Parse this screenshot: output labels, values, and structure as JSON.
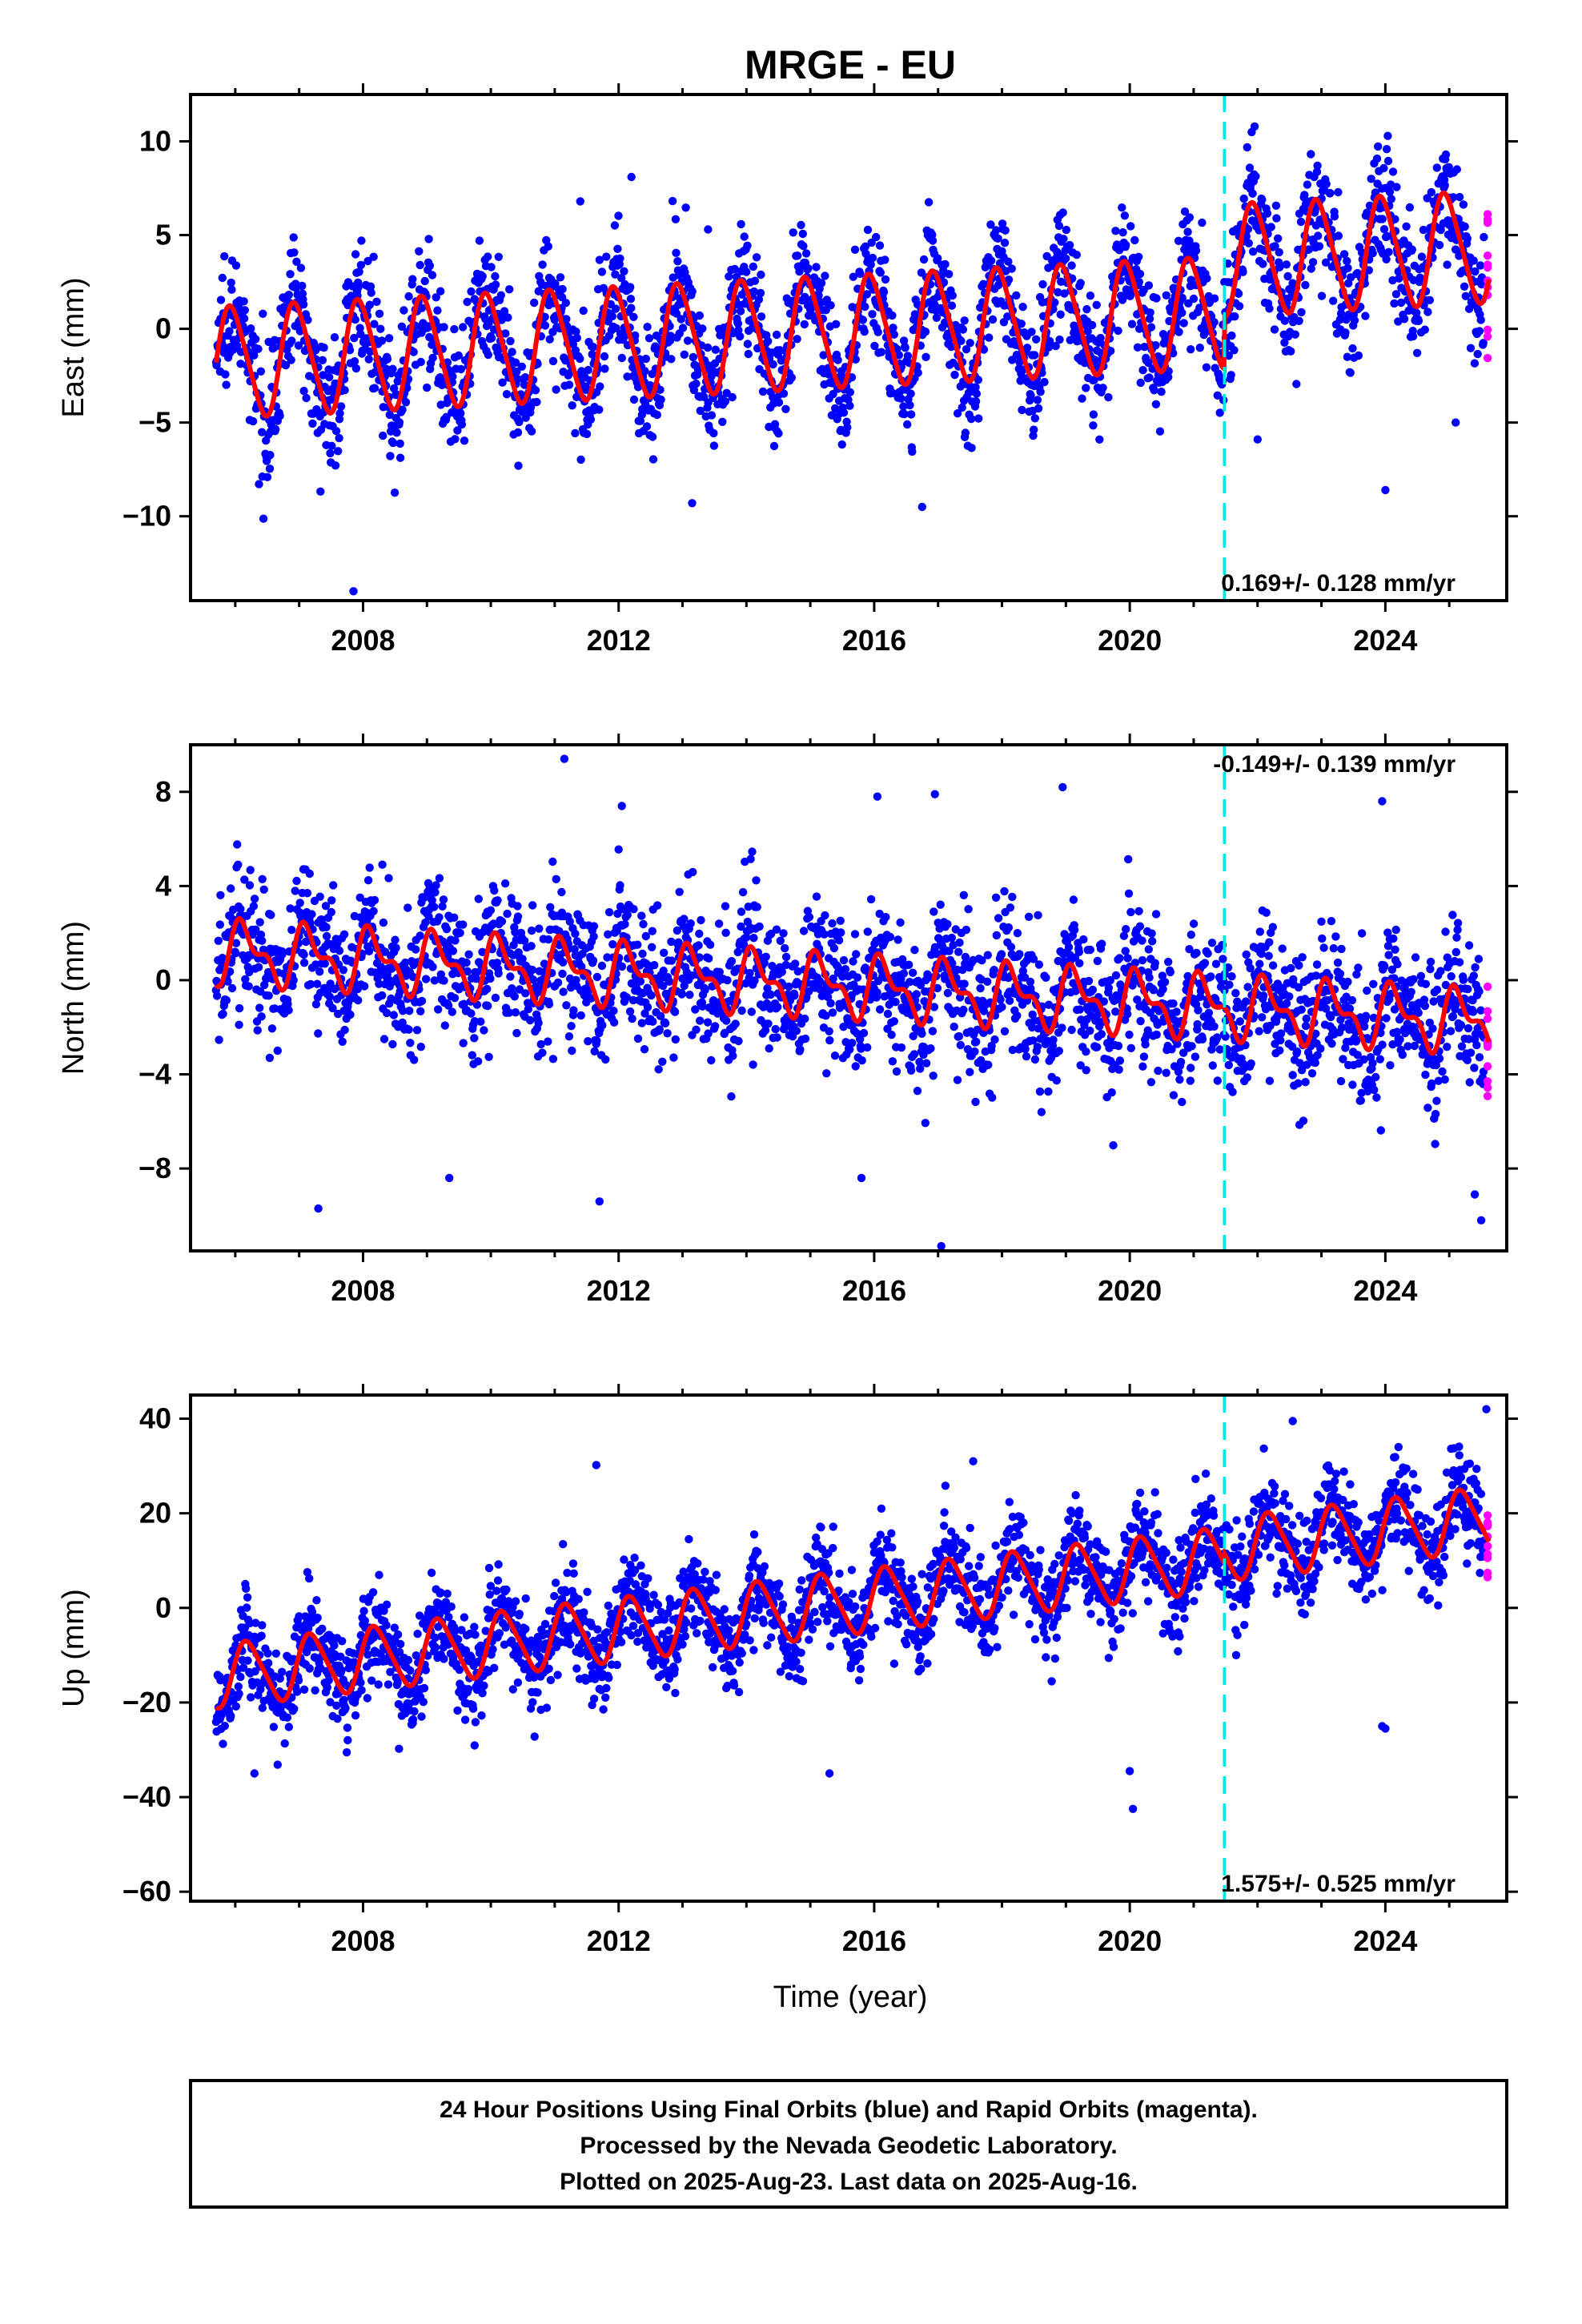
{
  "title": "MRGE - EU",
  "colors": {
    "final": "#0000ff",
    "rapid": "#ff00ff",
    "model": "#ff0000",
    "equipment_change": "#00e5e5"
  },
  "chart_data": [
    {
      "type": "scatter",
      "id": "east",
      "ylabel": "East (mm)",
      "xlim": [
        2005.3,
        2025.9
      ],
      "ylim": [
        -14.5,
        12.5
      ],
      "yticks": [
        10,
        5,
        0,
        -5,
        -10
      ],
      "ytick_labels": [
        "10",
        "5",
        "0",
        "−5",
        "−10"
      ],
      "xticks": [
        2008,
        2012,
        2016,
        2020,
        2024
      ],
      "xtick_labels": [
        "2008",
        "2012",
        "2016",
        "2020",
        "2024"
      ],
      "x_start": 2005.7,
      "x_end": 2025.62,
      "rapid_start": 2025.55,
      "equipment_change_year": 2021.48,
      "rate_text": "0.169+/- 0.128 mm/yr",
      "rate_position": "bottom-right",
      "model": {
        "trend_start": -1.8,
        "rate": 0.169,
        "step_year": 2021.48,
        "step": 2.8,
        "annual_amplitude": 2.9,
        "annual_phase": 2005.7,
        "semiannual_amplitude": 0.4
      },
      "scatter_sd": 1.6,
      "point_count": 2600,
      "outliers": [
        [
          2007.85,
          -14.0
        ],
        [
          2011.4,
          6.8
        ],
        [
          2012.2,
          8.1
        ],
        [
          2013.15,
          -9.3
        ],
        [
          2016.75,
          -9.5
        ],
        [
          2022.0,
          -5.9
        ],
        [
          2024.0,
          -8.6
        ],
        [
          2025.1,
          -5.0
        ],
        [
          2013.4,
          5.3
        ]
      ]
    },
    {
      "type": "scatter",
      "id": "north",
      "ylabel": "North (mm)",
      "xlim": [
        2005.3,
        2025.9
      ],
      "ylim": [
        -11.5,
        10.0
      ],
      "yticks": [
        8,
        4,
        0,
        -4,
        -8
      ],
      "ytick_labels": [
        "8",
        "4",
        "0",
        "−4",
        "−8"
      ],
      "xticks": [
        2008,
        2012,
        2016,
        2020,
        2024
      ],
      "xtick_labels": [
        "2008",
        "2012",
        "2016",
        "2020",
        "2024"
      ],
      "x_start": 2005.7,
      "x_end": 2025.62,
      "rapid_start": 2025.55,
      "equipment_change_year": 2021.48,
      "rate_text": "-0.149+/- 0.139 mm/yr",
      "rate_position": "top-right",
      "model": {
        "trend_start": 1.2,
        "rate": -0.149,
        "step_year": 2021.48,
        "step": 0.0,
        "annual_amplitude": 1.1,
        "annual_phase": 2005.9,
        "semiannual_amplitude": 0.6
      },
      "scatter_sd": 1.5,
      "point_count": 2600,
      "outliers": [
        [
          2011.15,
          9.4
        ],
        [
          2012.05,
          7.4
        ],
        [
          2016.05,
          7.8
        ],
        [
          2016.95,
          7.9
        ],
        [
          2018.95,
          8.2
        ],
        [
          2023.95,
          7.6
        ],
        [
          2007.3,
          -9.7
        ],
        [
          2011.7,
          -9.4
        ],
        [
          2017.05,
          -11.3
        ],
        [
          2015.8,
          -8.4
        ],
        [
          2009.35,
          -8.4
        ],
        [
          2025.5,
          -10.2
        ],
        [
          2025.4,
          -9.1
        ]
      ]
    },
    {
      "type": "scatter",
      "id": "up",
      "ylabel": "Up (mm)",
      "xlabel": "Time (year)",
      "xlim": [
        2005.3,
        2025.9
      ],
      "ylim": [
        -62,
        45
      ],
      "yticks": [
        40,
        20,
        0,
        -20,
        -40,
        -60
      ],
      "ytick_labels": [
        "40",
        "20",
        "0",
        "−20",
        "−40",
        "−60"
      ],
      "xticks": [
        2008,
        2012,
        2016,
        2020,
        2024
      ],
      "xtick_labels": [
        "2008",
        "2012",
        "2016",
        "2020",
        "2024"
      ],
      "x_start": 2005.7,
      "x_end": 2025.62,
      "rapid_start": 2025.55,
      "equipment_change_year": 2021.48,
      "rate_text": "1.575+/- 0.525 mm/yr",
      "rate_position": "bottom-right",
      "model": {
        "trend_start": -14.5,
        "rate": 1.575,
        "step_year": 2021.48,
        "step": 2.0,
        "annual_amplitude": 6.5,
        "annual_phase": 2005.95,
        "semiannual_amplitude": 1.0
      },
      "scatter_sd": 5.0,
      "point_count": 2600,
      "outliers": [
        [
          2011.65,
          30.2
        ],
        [
          2020.05,
          -42.5
        ],
        [
          2020.0,
          -34.5
        ],
        [
          2015.3,
          -35.0
        ],
        [
          2006.3,
          -35.0
        ],
        [
          2023.95,
          -25.0
        ],
        [
          2024.0,
          -25.5
        ],
        [
          2022.55,
          39.5
        ],
        [
          2025.58,
          42.0
        ],
        [
          2017.55,
          31.0
        ]
      ]
    }
  ],
  "caption": {
    "lines": [
      "24 Hour Positions Using Final Orbits (blue) and Rapid Orbits (magenta).",
      "Processed by the Nevada Geodetic Laboratory.",
      "Plotted on 2025-Aug-23. Last data on 2025-Aug-16."
    ]
  }
}
